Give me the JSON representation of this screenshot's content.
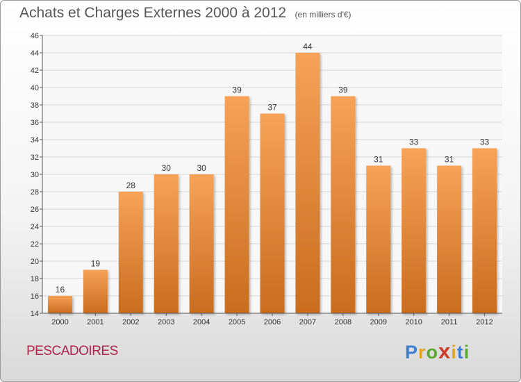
{
  "title": "Achats et Charges Externes 2000 à 2012",
  "subtitle": "(en milliers d'€)",
  "commune": "PESCADOIRES",
  "logo": {
    "letters": [
      "P",
      "r",
      "o",
      "x",
      "i",
      "t",
      "i"
    ],
    "colors": [
      "#3f7fd0",
      "#e2a323",
      "#5aa832",
      "#d03c2c",
      "#e2a323",
      "#3f7fd0",
      "#5aa832"
    ]
  },
  "colors": {
    "bar": "#f09040",
    "bar_dark": "#c86a1c",
    "title": "#555555",
    "commune": "#b0244e"
  },
  "chart_data": {
    "type": "bar",
    "categories": [
      "2000",
      "2001",
      "2002",
      "2003",
      "2004",
      "2005",
      "2006",
      "2007",
      "2008",
      "2009",
      "2010",
      "2011",
      "2012"
    ],
    "values": [
      16,
      19,
      28,
      30,
      30,
      39,
      37,
      44,
      39,
      31,
      33,
      31,
      33
    ],
    "ylim": [
      14,
      46
    ],
    "yticks": [
      14,
      16,
      18,
      20,
      22,
      24,
      26,
      28,
      30,
      32,
      34,
      36,
      38,
      40,
      42,
      44,
      46
    ],
    "grid": true,
    "xlabel": "",
    "ylabel": ""
  }
}
